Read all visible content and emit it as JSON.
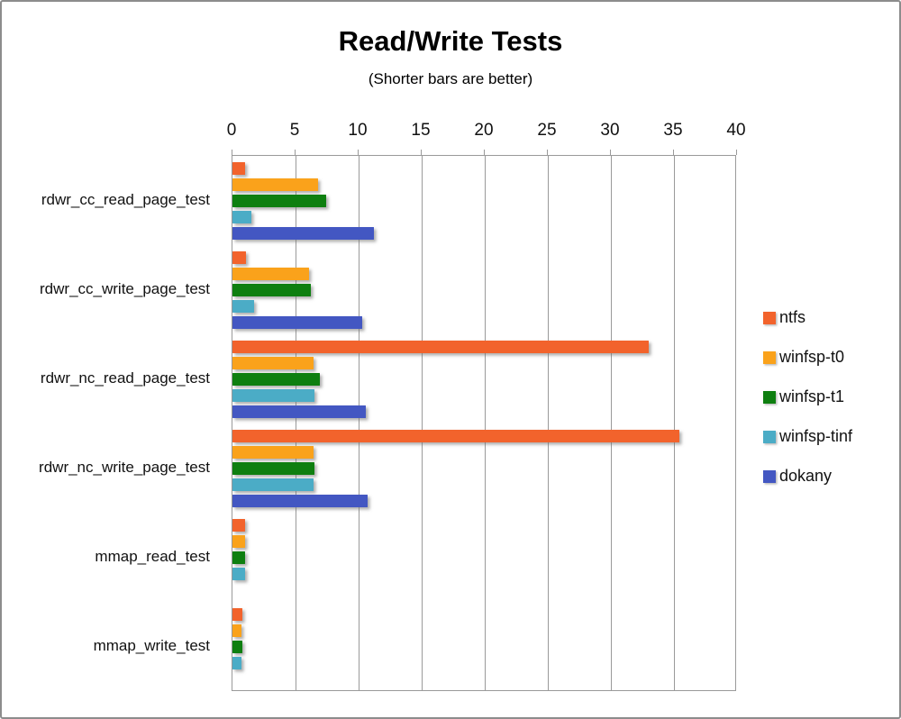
{
  "title": "Read/Write Tests",
  "subtitle": "(Shorter bars are better)",
  "chart_data": {
    "type": "bar",
    "orientation": "horizontal",
    "title": "Read/Write Tests",
    "subtitle": "(Shorter bars are better)",
    "xlabel": "",
    "ylabel": "",
    "xlim": [
      0,
      40
    ],
    "xticks": [
      0,
      5,
      10,
      15,
      20,
      25,
      30,
      35,
      40
    ],
    "grid": true,
    "legend_position": "right",
    "categories": [
      "rdwr_cc_read_page_test",
      "rdwr_cc_write_page_test",
      "rdwr_nc_read_page_test",
      "rdwr_nc_write_page_test",
      "mmap_read_test",
      "mmap_write_test"
    ],
    "series": [
      {
        "name": "ntfs",
        "color": "#F2632C",
        "values": [
          1.0,
          1.1,
          33.0,
          35.4,
          1.0,
          0.8
        ]
      },
      {
        "name": "winfsp-t0",
        "color": "#FAA21B",
        "values": [
          6.8,
          6.1,
          6.4,
          6.4,
          1.0,
          0.7
        ]
      },
      {
        "name": "winfsp-t1",
        "color": "#0E7F10",
        "values": [
          7.4,
          6.2,
          6.9,
          6.5,
          1.0,
          0.8
        ]
      },
      {
        "name": "winfsp-tinf",
        "color": "#4BACC6",
        "values": [
          1.5,
          1.7,
          6.5,
          6.4,
          1.0,
          0.7
        ]
      },
      {
        "name": "dokany",
        "color": "#4357C2",
        "values": [
          11.2,
          10.3,
          10.6,
          10.7,
          0,
          0
        ]
      }
    ]
  },
  "colors": {
    "grid": "#9a9a9a",
    "plot_border": "#9a9a9a",
    "frame_border": "#8c8c8c"
  }
}
